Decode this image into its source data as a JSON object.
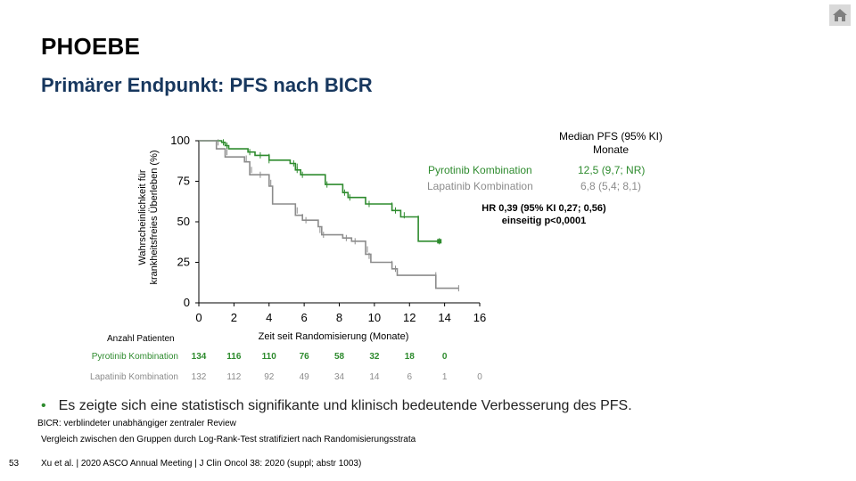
{
  "header": {
    "title": "PHOEBE",
    "subtitle": "Primärer Endpunkt: PFS nach BICR",
    "home_icon": "home-icon"
  },
  "colors": {
    "pyrotinib": "#2e8b2e",
    "lapatinib": "#8c8c8c",
    "subtitle": "#17375e"
  },
  "legend": {
    "header_line1": "Median PFS (95% KI)",
    "header_line2": "Monate",
    "rows": [
      {
        "name": "Pyrotinib Kombination",
        "value": "12,5 (9,7; NR)"
      },
      {
        "name": "Lapatinib Kombination",
        "value": "6,8 (5,4; 8,1)"
      }
    ]
  },
  "hazard": {
    "line1": "HR 0,39 (95% KI 0,27; 0,56)",
    "line2": "einseitig p<0,0001"
  },
  "chart_data": {
    "type": "line",
    "step": true,
    "xlabel": "Zeit seit Randomisierung (Monate)",
    "ylabel_line1": "Wahrscheinlichkeit für",
    "ylabel_line2": "krankheitsfreies Überleben (%)",
    "xlim": [
      0,
      16
    ],
    "ylim": [
      0,
      100
    ],
    "xticks": [
      0,
      2,
      4,
      6,
      8,
      10,
      12,
      14,
      16
    ],
    "yticks": [
      0,
      25,
      50,
      75,
      100
    ],
    "series": [
      {
        "name": "Pyrotinib Kombination",
        "points": [
          [
            0,
            100
          ],
          [
            1.3,
            100
          ],
          [
            1.3,
            99
          ],
          [
            1.5,
            99
          ],
          [
            1.5,
            97
          ],
          [
            1.7,
            97
          ],
          [
            1.7,
            95
          ],
          [
            2.8,
            95
          ],
          [
            2.8,
            93
          ],
          [
            3.2,
            93
          ],
          [
            3.2,
            91
          ],
          [
            4,
            91
          ],
          [
            4,
            88
          ],
          [
            5.2,
            88
          ],
          [
            5.2,
            86
          ],
          [
            5.5,
            86
          ],
          [
            5.5,
            82
          ],
          [
            5.8,
            82
          ],
          [
            5.8,
            79
          ],
          [
            7.2,
            79
          ],
          [
            7.2,
            73
          ],
          [
            8.2,
            73
          ],
          [
            8.2,
            68
          ],
          [
            8.5,
            68
          ],
          [
            8.5,
            65
          ],
          [
            9.5,
            65
          ],
          [
            9.5,
            61
          ],
          [
            11,
            61
          ],
          [
            11,
            57
          ],
          [
            11.5,
            57
          ],
          [
            11.5,
            53
          ],
          [
            12.5,
            53
          ],
          [
            12.5,
            38
          ],
          [
            13.7,
            38
          ]
        ],
        "censors": [
          [
            1.4,
            99
          ],
          [
            1.6,
            97
          ],
          [
            2.9,
            93
          ],
          [
            3.5,
            91
          ],
          [
            4,
            90
          ],
          [
            4,
            88
          ],
          [
            5.4,
            86
          ],
          [
            5.6,
            84
          ],
          [
            5.6,
            82
          ],
          [
            5.9,
            79
          ],
          [
            7.3,
            73
          ],
          [
            8.3,
            68
          ],
          [
            8.6,
            65
          ],
          [
            9.7,
            61
          ],
          [
            11,
            60
          ],
          [
            11.2,
            57
          ],
          [
            11.7,
            54
          ],
          [
            12.5,
            52
          ],
          [
            13.7,
            38
          ]
        ]
      },
      {
        "name": "Lapatinib Kombination",
        "points": [
          [
            0,
            100
          ],
          [
            1,
            100
          ],
          [
            1,
            95
          ],
          [
            1.5,
            95
          ],
          [
            1.5,
            90
          ],
          [
            2.6,
            90
          ],
          [
            2.6,
            87
          ],
          [
            2.9,
            87
          ],
          [
            2.9,
            79
          ],
          [
            4,
            79
          ],
          [
            4,
            72
          ],
          [
            4.2,
            72
          ],
          [
            4.2,
            61
          ],
          [
            5.5,
            61
          ],
          [
            5.5,
            54
          ],
          [
            5.9,
            54
          ],
          [
            5.9,
            51
          ],
          [
            6.8,
            51
          ],
          [
            6.8,
            47
          ],
          [
            7,
            47
          ],
          [
            7,
            42
          ],
          [
            8.2,
            42
          ],
          [
            8.2,
            40
          ],
          [
            8.7,
            40
          ],
          [
            8.7,
            38
          ],
          [
            9.5,
            38
          ],
          [
            9.5,
            30
          ],
          [
            9.8,
            30
          ],
          [
            9.8,
            25
          ],
          [
            11,
            25
          ],
          [
            11,
            21
          ],
          [
            11.3,
            21
          ],
          [
            11.3,
            17
          ],
          [
            13.5,
            17
          ],
          [
            13.5,
            9
          ],
          [
            14.8,
            9
          ]
        ],
        "censors": [
          [
            1.1,
            99
          ],
          [
            1.6,
            93
          ],
          [
            2.7,
            89
          ],
          [
            3,
            82
          ],
          [
            3.5,
            79
          ],
          [
            4.1,
            74
          ],
          [
            4.2,
            65
          ],
          [
            5.6,
            57
          ],
          [
            5.9,
            53
          ],
          [
            6.1,
            51
          ],
          [
            6.8,
            49
          ],
          [
            6.9,
            45
          ],
          [
            7.1,
            42
          ],
          [
            8.4,
            40
          ],
          [
            8.9,
            38
          ],
          [
            9.6,
            33
          ],
          [
            9.7,
            29
          ],
          [
            11,
            24
          ],
          [
            11.2,
            21
          ],
          [
            13.5,
            17
          ],
          [
            14.8,
            9
          ]
        ]
      }
    ]
  },
  "risk_table": {
    "header": "Anzahl Patienten",
    "time_points": [
      0,
      2,
      4,
      6,
      8,
      10,
      12,
      14,
      16
    ],
    "rows": [
      {
        "name": "Pyrotinib Kombination",
        "values": [
          "134",
          "116",
          "110",
          "76",
          "58",
          "32",
          "18",
          "0"
        ]
      },
      {
        "name": "Lapatinib Kombination",
        "values": [
          "132",
          "112",
          "92",
          "49",
          "34",
          "14",
          "6",
          "1",
          "0"
        ]
      }
    ]
  },
  "body": {
    "bullet": "Es zeigte sich eine statistisch signifikante und klinisch bedeutende Verbesserung des PFS.",
    "footnote1": "BICR: verblindeter unabhängiger zentraler Review",
    "footnote2": "Vergleich zwischen den Gruppen durch Log-Rank-Test stratifiziert nach Randomisierungsstrata"
  },
  "footer": {
    "page_number": "53",
    "citation": "Xu et al. | 2020 ASCO Annual Meeting | J Clin Oncol 38: 2020 (suppl; abstr 1003)"
  }
}
